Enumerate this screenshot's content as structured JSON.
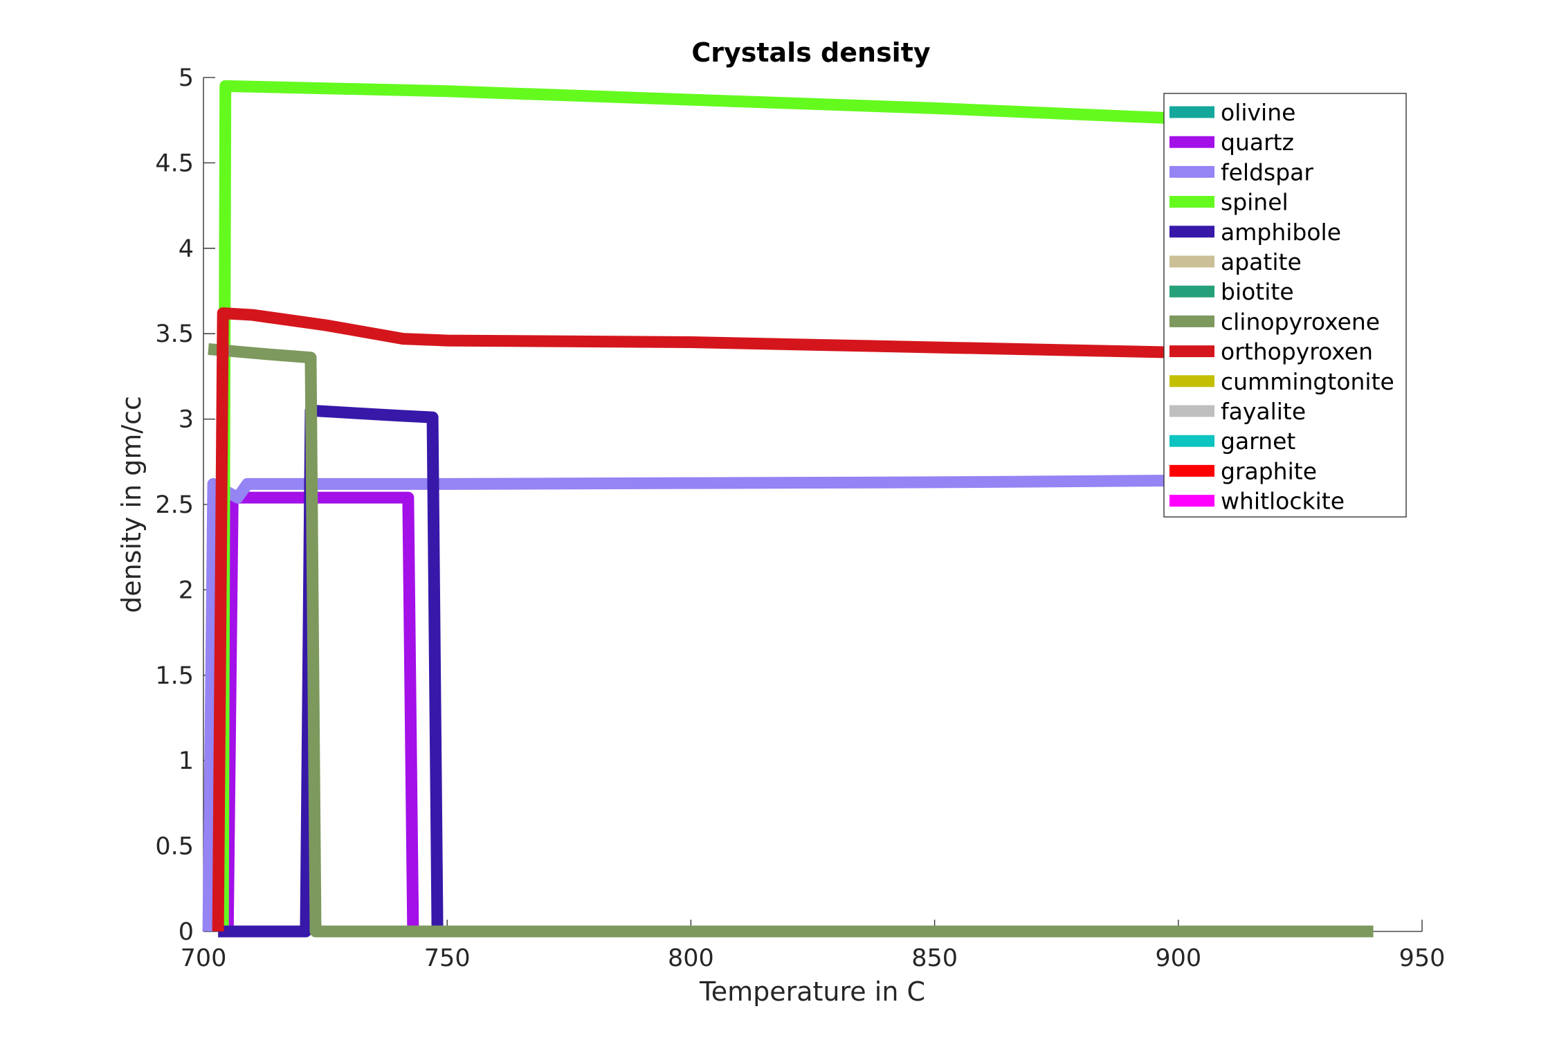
{
  "chart_data": {
    "type": "line",
    "title": "Crystals density",
    "xlabel": "Temperature in C",
    "ylabel": "density in gm/cc",
    "xlim": [
      700,
      950
    ],
    "ylim": [
      0,
      5
    ],
    "xticks": [
      "700",
      "750",
      "800",
      "850",
      "900",
      "950"
    ],
    "yticks": [
      "0",
      "0.5",
      "1",
      "1.5",
      "2",
      "2.5",
      "3",
      "3.5",
      "4",
      "4.5",
      "5"
    ],
    "grid": false,
    "legend_position": "top-right",
    "series": [
      {
        "name": "olivine",
        "color": "#14a89c",
        "points": []
      },
      {
        "name": "quartz",
        "color": "#a310e8",
        "points": [
          [
            705,
            0
          ],
          [
            706,
            2.54
          ],
          [
            742,
            2.54
          ],
          [
            743,
            0
          ]
        ]
      },
      {
        "name": "feldspar",
        "color": "#9484f4",
        "points": [
          [
            701,
            0
          ],
          [
            702,
            2.62
          ],
          [
            707,
            2.54
          ],
          [
            709,
            2.62
          ],
          [
            750,
            2.62
          ],
          [
            800,
            2.625
          ],
          [
            850,
            2.63
          ],
          [
            900,
            2.64
          ],
          [
            913,
            2.64
          ]
        ]
      },
      {
        "name": "spinel",
        "color": "#64fa1e",
        "points": [
          [
            704,
            0
          ],
          [
            704.5,
            4.95
          ],
          [
            750,
            4.92
          ],
          [
            800,
            4.87
          ],
          [
            850,
            4.82
          ],
          [
            900,
            4.76
          ],
          [
            913,
            4.75
          ]
        ]
      },
      {
        "name": "amphibole",
        "color": "#3718a8",
        "points": [
          [
            703,
            0
          ],
          [
            721,
            0
          ],
          [
            722,
            3.05
          ],
          [
            740,
            3.02
          ],
          [
            747,
            3.01
          ],
          [
            748,
            0
          ]
        ]
      },
      {
        "name": "apatite",
        "color": "#cbbf97",
        "points": []
      },
      {
        "name": "biotite",
        "color": "#25a07a",
        "points": []
      },
      {
        "name": "clinopyroxene",
        "color": "#7d995e",
        "points": [
          [
            701,
            3.41
          ],
          [
            713,
            3.38
          ],
          [
            722,
            3.36
          ],
          [
            723,
            0
          ],
          [
            800,
            0
          ],
          [
            850,
            0
          ],
          [
            900,
            0
          ],
          [
            940,
            0
          ]
        ]
      },
      {
        "name": "orthopyroxen",
        "color": "#d4161c",
        "points": [
          [
            703,
            0
          ],
          [
            704,
            3.62
          ],
          [
            710,
            3.61
          ],
          [
            725,
            3.55
          ],
          [
            741,
            3.47
          ],
          [
            750,
            3.46
          ],
          [
            800,
            3.45
          ],
          [
            850,
            3.42
          ],
          [
            900,
            3.39
          ],
          [
            913,
            3.39
          ]
        ]
      },
      {
        "name": "cummingtonite",
        "color": "#c3bf05",
        "points": []
      },
      {
        "name": "fayalite",
        "color": "#bfbfbf",
        "points": []
      },
      {
        "name": "garnet",
        "color": "#0ec4c0",
        "points": []
      },
      {
        "name": "graphite",
        "color": "#ff0000",
        "points": []
      },
      {
        "name": "whitlockite",
        "color": "#ff00ff",
        "points": []
      }
    ]
  }
}
